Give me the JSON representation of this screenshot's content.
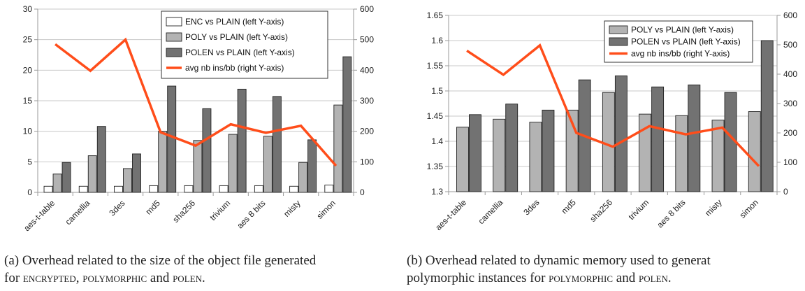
{
  "chart_data": [
    {
      "type": "bar",
      "categories": [
        "aes-t-table",
        "camellia",
        "3des",
        "md5",
        "sha256",
        "trivium",
        "aes 8 bits",
        "misty",
        "simon"
      ],
      "series": [
        {
          "name": "ENC vs PLAIN (left Y-axis)",
          "type": "bar",
          "axis": "left",
          "color": "#ffffff",
          "values": [
            1.0,
            1.0,
            1.0,
            1.1,
            1.1,
            1.1,
            1.1,
            1.0,
            1.2
          ]
        },
        {
          "name": "POLY vs PLAIN (left Y-axis)",
          "type": "bar",
          "axis": "left",
          "color": "#b3b3b3",
          "values": [
            3.0,
            6.0,
            3.9,
            10.0,
            8.5,
            9.5,
            9.2,
            4.9,
            14.3
          ]
        },
        {
          "name": "POLEN vs PLAIN (left Y-axis)",
          "type": "bar",
          "axis": "left",
          "color": "#727272",
          "values": [
            4.9,
            10.8,
            6.3,
            17.4,
            13.7,
            16.9,
            15.7,
            8.6,
            22.2
          ]
        },
        {
          "name": "avg nb ins/bb (right Y-axis)",
          "type": "line",
          "axis": "right",
          "color": "#ff4d1a",
          "values": [
            485,
            398,
            500,
            197,
            153,
            223,
            195,
            218,
            87
          ]
        }
      ],
      "ylim": [
        0,
        30
      ],
      "yticks": [
        "0",
        "5",
        "10",
        "15",
        "20",
        "25",
        "30"
      ],
      "y2lim": [
        0,
        600
      ],
      "y2ticks": [
        "0",
        "100",
        "200",
        "300",
        "400",
        "500",
        "600"
      ],
      "grid": true,
      "legend": "top-right"
    },
    {
      "type": "bar",
      "categories": [
        "aes-t-table",
        "camellia",
        "3des",
        "md5",
        "sha256",
        "trivium",
        "aes 8 bits",
        "misty",
        "simon"
      ],
      "series": [
        {
          "name": "POLY vs PLAIN (left Y-axis)",
          "type": "bar",
          "axis": "left",
          "color": "#b3b3b3",
          "values": [
            1.428,
            1.444,
            1.438,
            1.462,
            1.497,
            1.454,
            1.451,
            1.442,
            1.459
          ]
        },
        {
          "name": "POLEN vs PLAIN (left Y-axis)",
          "type": "bar",
          "axis": "left",
          "color": "#727272",
          "values": [
            1.453,
            1.474,
            1.462,
            1.522,
            1.53,
            1.508,
            1.512,
            1.497,
            1.6
          ]
        },
        {
          "name": "avg nb ins/bb (right Y-axis)",
          "type": "line",
          "axis": "right",
          "color": "#ff4d1a",
          "values": [
            480,
            398,
            498,
            200,
            153,
            223,
            195,
            218,
            87
          ]
        }
      ],
      "ylim": [
        1.3,
        1.65
      ],
      "yticks": [
        "1.3",
        "1.35",
        "1.4",
        "1.45",
        "1.5",
        "1.55",
        "1.6",
        "1.65"
      ],
      "y2lim": [
        0,
        600
      ],
      "y2ticks": [
        "0",
        "100",
        "200",
        "300",
        "400",
        "500",
        "600"
      ],
      "grid": true,
      "legend": "top-right"
    }
  ],
  "captions": {
    "a": {
      "line1": "(a) Overhead related to the size of the object file generated",
      "line2_pre": "for ",
      "sc1": "ENCRYPTED",
      "sep1": ", ",
      "sc2": "POLYMORPHIC",
      "sep2": " and ",
      "sc3": "POLEN",
      "end": "."
    },
    "b": {
      "line1": "(b) Overhead related to dynamic memory used to generat",
      "line2_pre": "polymorphic instances for ",
      "sc1": "POLYMORPHIC",
      "sep1": " and ",
      "sc2": "POLEN",
      "end": "."
    }
  }
}
